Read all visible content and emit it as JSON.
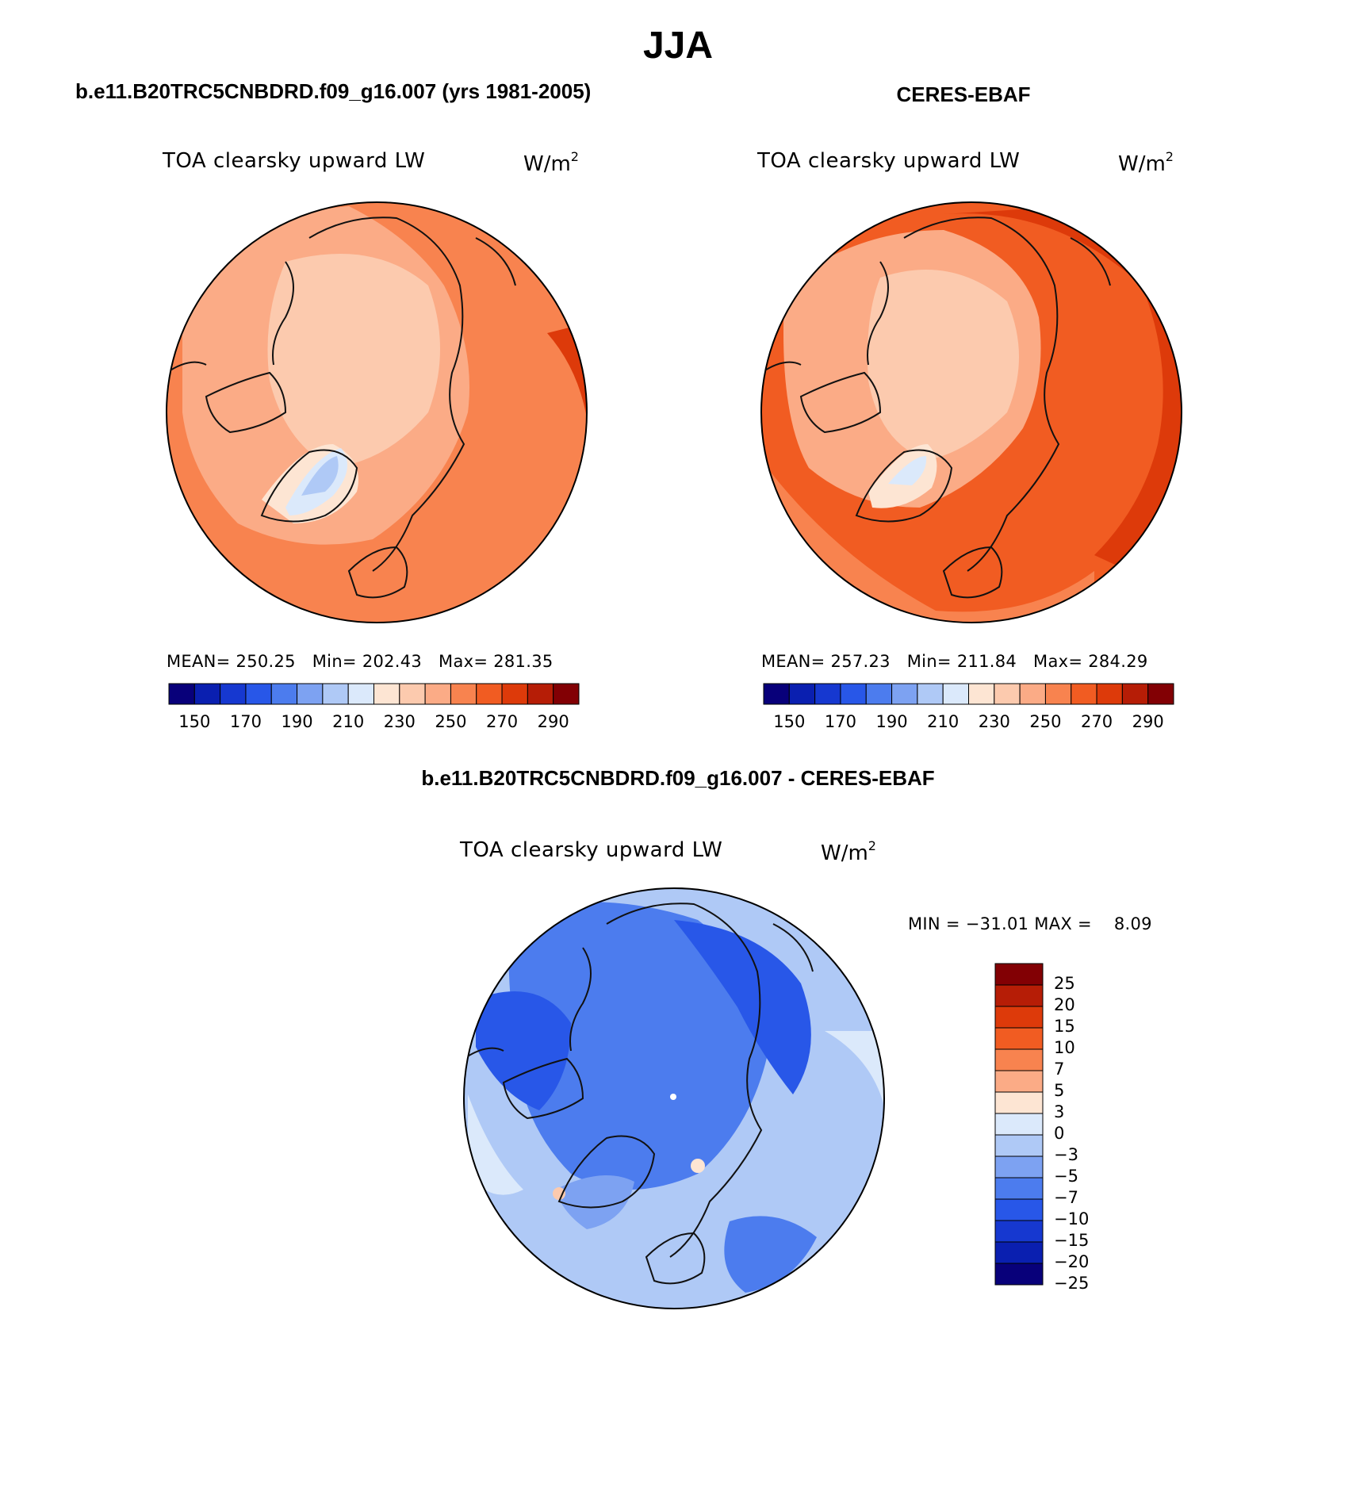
{
  "title": "JJA",
  "panels": [
    {
      "id": "model",
      "header": "b.e11.B20TRC5CNBDRD.f09_g16.007 (yrs 1981-2005)",
      "variable": "TOA clearsky upward LW",
      "unit_base": "W/m",
      "unit_exp": "2",
      "stats": {
        "mean_label": "MEAN=",
        "mean": "250.25",
        "min_label": "Min=",
        "min": "202.43",
        "max_label": "Max=",
        "max": "281.35"
      },
      "colorbar_ticks": [
        "150",
        "170",
        "190",
        "210",
        "230",
        "250",
        "270",
        "290"
      ]
    },
    {
      "id": "obs",
      "header": "CERES-EBAF",
      "variable": "TOA clearsky upward LW",
      "unit_base": "W/m",
      "unit_exp": "2",
      "stats": {
        "mean_label": "MEAN=",
        "mean": "257.23",
        "min_label": "Min=",
        "min": "211.84",
        "max_label": "Max=",
        "max": "284.29"
      },
      "colorbar_ticks": [
        "150",
        "170",
        "190",
        "210",
        "230",
        "250",
        "270",
        "290"
      ]
    }
  ],
  "difference": {
    "header": "b.e11.B20TRC5CNBDRD.f09_g16.007 - CERES-EBAF",
    "variable": "TOA clearsky upward LW",
    "unit_base": "W/m",
    "unit_exp": "2",
    "min_label": "MIN =",
    "min": "−31.01",
    "max_label": "MAX =",
    "max": "8.09",
    "colorbar_ticks": [
      "25",
      "20",
      "15",
      "10",
      "7",
      "5",
      "3",
      "0",
      "−3",
      "−5",
      "−7",
      "−10",
      "−15",
      "−20",
      "−25"
    ]
  },
  "palettes": {
    "absolute": [
      "#08007a",
      "#0a1fb0",
      "#1638d0",
      "#2857e8",
      "#4c7cee",
      "#7da2f2",
      "#afc9f6",
      "#dbe9fb",
      "#fde5d3",
      "#fccaae",
      "#fbab86",
      "#f8834f",
      "#f15c22",
      "#dd3a0a",
      "#b61d06",
      "#820004"
    ],
    "difference": [
      "#820004",
      "#b61d06",
      "#dd3a0a",
      "#f15c22",
      "#f8834f",
      "#fbab86",
      "#fde5d3",
      "#dbe9fb",
      "#afc9f6",
      "#7da2f2",
      "#4c7cee",
      "#2857e8",
      "#1638d0",
      "#0a1fb0",
      "#08007a"
    ]
  }
}
